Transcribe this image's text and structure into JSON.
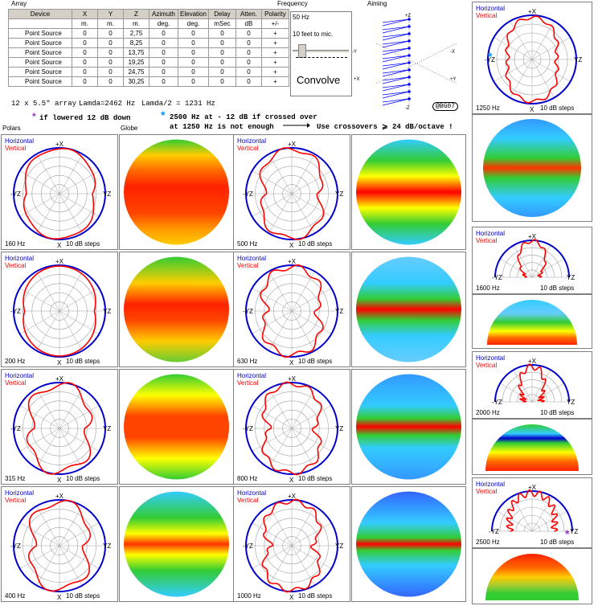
{
  "colors": {
    "horizontal": "#0000cc",
    "vertical": "#ff0000",
    "grid": "#a0a0a0",
    "frame": "#000000"
  },
  "headers": {
    "array": "Array",
    "frequency": "Frequency",
    "aiming": "Aiming",
    "polars": "Polars",
    "globe": "Globe"
  },
  "table": {
    "columns": [
      "Device",
      "X",
      "Y",
      "Z",
      "Azimuth",
      "Elevation",
      "Delay",
      "Atten.",
      "Polarity"
    ],
    "units": [
      "",
      "m.",
      "m.",
      "m.",
      "deg.",
      "deg.",
      "mSec",
      "dB",
      "+/-"
    ],
    "rows": [
      [
        "Point Source",
        "0",
        "0",
        "2,75",
        "0",
        "0",
        "0",
        "0",
        "+"
      ],
      [
        "Point Source",
        "0",
        "0",
        "8,25",
        "0",
        "0",
        "0",
        "0",
        "+"
      ],
      [
        "Point Source",
        "0",
        "0",
        "13,75",
        "0",
        "0",
        "0",
        "0",
        "+"
      ],
      [
        "Point Source",
        "0",
        "0",
        "19,25",
        "0",
        "0",
        "0",
        "0",
        "+"
      ],
      [
        "Point Source",
        "0",
        "0",
        "24,75",
        "0",
        "0",
        "0",
        "0",
        "+"
      ],
      [
        "Point Source",
        "0",
        "0",
        "30,25",
        "0",
        "0",
        "0",
        "0",
        "+"
      ]
    ]
  },
  "frequency_panel": {
    "freq": "50 Hz",
    "distance": "10 feet to mic.",
    "button": "Convolve"
  },
  "aiming_axes": {
    "z_top": "+Z",
    "z_bottom": "-Z",
    "x_pos": "+X",
    "x_neg": "-X",
    "y_pos": "+Y",
    "y_neg": "-Y"
  },
  "info": {
    "array_desc": "12 x 5.5\" array",
    "lambda": "Lamda=2462 Hz",
    "lambda_half": "Lamda/2 = 1231 Hz",
    "badge": "@BG07",
    "note1": "if lowered 12 dB down",
    "note2": "2500 Hz at - 12 dB if crossed over",
    "note3": "at 1250 Hz is  not  enough",
    "note4": "Use crossovers ⩾ 24 dB/octave !"
  },
  "plot_labels": {
    "horizontal": "Horizontal",
    "vertical": "Vertical",
    "top": "+X",
    "bottom": "X",
    "left": "-YZ",
    "right": "YZ",
    "steps": "10 dB steps"
  },
  "polars": [
    {
      "freq": "160 Hz"
    },
    {
      "freq": "500 Hz"
    },
    {
      "freq": "200 Hz"
    },
    {
      "freq": "630 Hz"
    },
    {
      "freq": "315 Hz"
    },
    {
      "freq": "800 Hz"
    },
    {
      "freq": "400 Hz"
    },
    {
      "freq": "1000 Hz"
    }
  ],
  "right_polars": [
    {
      "freq": "1250 Hz"
    },
    {
      "freq": "1600 Hz"
    },
    {
      "freq": "2000 Hz"
    },
    {
      "freq": "2500 Hz"
    }
  ]
}
